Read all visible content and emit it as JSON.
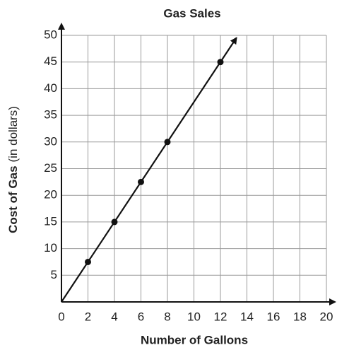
{
  "chart_data": {
    "type": "line",
    "title": "Gas Sales",
    "xlabel": "Number of Gallons",
    "ylabel": "Cost of Gas",
    "ylabel_unit": "(in dollars)",
    "x": [
      2,
      4,
      6,
      8,
      12
    ],
    "series": [
      {
        "color": "#111111",
        "values": [
          7.5,
          15,
          22.5,
          30,
          45
        ]
      }
    ],
    "xlim": [
      0,
      20
    ],
    "xticks": [
      0,
      2,
      4,
      6,
      8,
      10,
      12,
      14,
      16,
      18,
      20
    ],
    "ylim": [
      0,
      50
    ],
    "yticks": [
      5,
      10,
      15,
      20,
      25,
      30,
      35,
      40,
      45,
      50
    ],
    "grid": true
  }
}
